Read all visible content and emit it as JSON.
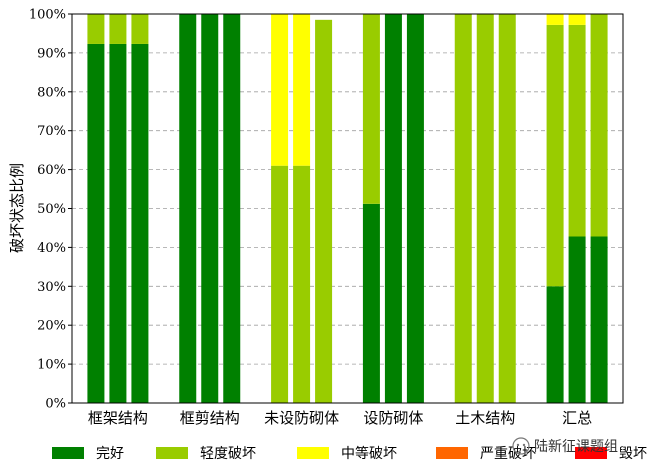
{
  "chart_data": {
    "type": "bar",
    "stacked": true,
    "ylabel": "破坏状态比例",
    "xlabel": "",
    "title": "",
    "ylim": [
      0,
      100
    ],
    "yticks": [
      0,
      10,
      20,
      30,
      40,
      50,
      60,
      70,
      80,
      90,
      100
    ],
    "ytick_suffix": "%",
    "grid": "horizontal-dashed",
    "legend_position": "bottom",
    "groups": [
      {
        "label": "框架结构",
        "bars": [
          {
            "values": [
              92.3,
              7.7,
              0,
              0,
              0
            ]
          },
          {
            "values": [
              92.3,
              7.7,
              0,
              0,
              0
            ]
          },
          {
            "values": [
              92.3,
              7.7,
              0,
              0,
              0
            ]
          }
        ]
      },
      {
        "label": "框剪结构",
        "bars": [
          {
            "values": [
              100,
              0,
              0,
              0,
              0
            ]
          },
          {
            "values": [
              100,
              0,
              0,
              0,
              0
            ]
          },
          {
            "values": [
              100,
              0,
              0,
              0,
              0
            ]
          }
        ]
      },
      {
        "label": "未设防砌体",
        "bars": [
          {
            "values": [
              0,
              61,
              39,
              0,
              0
            ]
          },
          {
            "values": [
              0,
              61,
              39,
              0,
              0
            ]
          },
          {
            "values": [
              0,
              98.5,
              0,
              0,
              0
            ]
          }
        ]
      },
      {
        "label": "设防砌体",
        "bars": [
          {
            "values": [
              51.2,
              48.8,
              0,
              0,
              0
            ]
          },
          {
            "values": [
              100,
              0,
              0,
              0,
              0
            ]
          },
          {
            "values": [
              100,
              0,
              0,
              0,
              0
            ]
          }
        ]
      },
      {
        "label": "土木结构",
        "bars": [
          {
            "values": [
              0,
              100,
              0,
              0,
              0
            ]
          },
          {
            "values": [
              0,
              100,
              0,
              0,
              0
            ]
          },
          {
            "values": [
              0,
              100,
              0,
              0,
              0
            ]
          }
        ]
      },
      {
        "label": "汇总",
        "bars": [
          {
            "values": [
              30,
              67.2,
              2.8,
              0,
              0
            ]
          },
          {
            "values": [
              42.8,
              54.4,
              2.8,
              0,
              0
            ]
          },
          {
            "values": [
              42.8,
              57.2,
              0,
              0,
              0
            ]
          }
        ]
      }
    ],
    "series": [
      {
        "name": "完好",
        "color": "#008000"
      },
      {
        "name": "轻度破坏",
        "color": "#99cc00"
      },
      {
        "name": "中等破坏",
        "color": "#ffff00"
      },
      {
        "name": "严重破坏",
        "color": "#ff6600"
      },
      {
        "name": "毁坏",
        "color": "#ff0000"
      }
    ]
  },
  "watermark": {
    "text": "陆新征课题组",
    "icon": "wechat-icon"
  }
}
